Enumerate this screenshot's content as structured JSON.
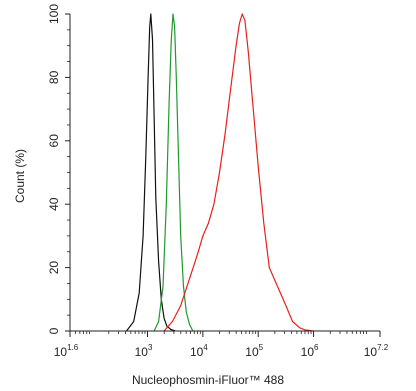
{
  "chart_data": {
    "type": "line",
    "title": "",
    "xlabel": "Nucleophosmin-iFluor™ 488",
    "ylabel": "Count (%)",
    "x_scale": "log",
    "xlim": [
      1.6,
      7.2
    ],
    "ylim": [
      0,
      100
    ],
    "x_ticks": [
      {
        "base": "10",
        "exp": "1.6",
        "value": 1.6
      },
      {
        "base": "10",
        "exp": "3",
        "value": 3
      },
      {
        "base": "10",
        "exp": "4",
        "value": 4
      },
      {
        "base": "10",
        "exp": "5",
        "value": 5
      },
      {
        "base": "10",
        "exp": "6",
        "value": 6
      },
      {
        "base": "10",
        "exp": "7.2",
        "value": 7.2
      }
    ],
    "y_ticks": [
      "0",
      "20",
      "40",
      "60",
      "80",
      "100"
    ],
    "grid": false,
    "legend": "none",
    "series": [
      {
        "color": "#111111",
        "x": [
          2.62,
          2.75,
          2.85,
          2.92,
          2.97,
          3.01,
          3.04,
          3.06,
          3.09,
          3.12,
          3.15,
          3.2,
          3.25,
          3.3,
          3.35,
          3.42,
          3.5
        ],
        "y": [
          0,
          3,
          12,
          30,
          55,
          80,
          96,
          100,
          92,
          68,
          42,
          22,
          10,
          4,
          1.5,
          0.5,
          0
        ]
      },
      {
        "color": "#1f9a2e",
        "x": [
          3.12,
          3.2,
          3.28,
          3.34,
          3.39,
          3.43,
          3.46,
          3.49,
          3.52,
          3.56,
          3.6,
          3.65,
          3.7,
          3.76,
          3.82
        ],
        "y": [
          0,
          3,
          14,
          40,
          72,
          92,
          100,
          96,
          80,
          55,
          30,
          14,
          6,
          2,
          0
        ]
      },
      {
        "color": "#e8201c",
        "x": [
          3.3,
          3.45,
          3.6,
          3.75,
          3.9,
          4.0,
          4.1,
          4.2,
          4.3,
          4.4,
          4.5,
          4.6,
          4.66,
          4.71,
          4.76,
          4.82,
          4.9,
          5.0,
          5.1,
          5.2,
          5.35,
          5.5,
          5.62,
          5.75,
          5.85,
          6.0
        ],
        "y": [
          0,
          3,
          8,
          16,
          24,
          30,
          34,
          40,
          50,
          62,
          76,
          90,
          97,
          100,
          98,
          88,
          72,
          52,
          34,
          20,
          14,
          8,
          3,
          1,
          0.3,
          0
        ]
      }
    ]
  }
}
